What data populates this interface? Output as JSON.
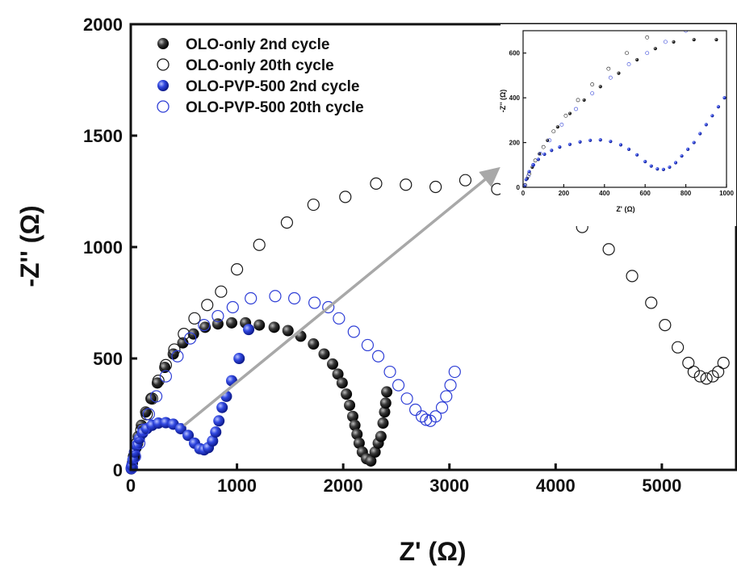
{
  "chart_data": {
    "type": "scatter",
    "title": "",
    "xlabel": "Z' (Ω)",
    "ylabel": "-Z'' (Ω)",
    "xlim": [
      0,
      5700
    ],
    "ylim": [
      0,
      2000
    ],
    "x_ticks": [
      "0",
      "1000",
      "2000",
      "3000",
      "4000",
      "5000"
    ],
    "y_ticks": [
      "0",
      "500",
      "1000",
      "1500",
      "2000"
    ],
    "legend_position": "top-left",
    "grid": false,
    "series": [
      {
        "name": "OLO-only 2nd cycle",
        "style": "filled",
        "color": "#1a1a1a",
        "points": [
          [
            5,
            5
          ],
          [
            15,
            30
          ],
          [
            30,
            60
          ],
          [
            50,
            100
          ],
          [
            70,
            150
          ],
          [
            100,
            200
          ],
          [
            140,
            260
          ],
          [
            190,
            320
          ],
          [
            250,
            390
          ],
          [
            320,
            460
          ],
          [
            400,
            520
          ],
          [
            490,
            570
          ],
          [
            590,
            610
          ],
          [
            700,
            640
          ],
          [
            820,
            655
          ],
          [
            950,
            660
          ],
          [
            1080,
            660
          ],
          [
            1210,
            650
          ],
          [
            1350,
            640
          ],
          [
            1480,
            625
          ],
          [
            1600,
            600
          ],
          [
            1720,
            565
          ],
          [
            1820,
            520
          ],
          [
            1900,
            475
          ],
          [
            1950,
            430
          ],
          [
            1990,
            390
          ],
          [
            2030,
            340
          ],
          [
            2060,
            290
          ],
          [
            2090,
            240
          ],
          [
            2110,
            200
          ],
          [
            2130,
            160
          ],
          [
            2150,
            120
          ],
          [
            2180,
            80
          ],
          [
            2220,
            50
          ],
          [
            2260,
            40
          ],
          [
            2300,
            80
          ],
          [
            2330,
            120
          ],
          [
            2355,
            150
          ],
          [
            2375,
            210
          ],
          [
            2390,
            260
          ],
          [
            2400,
            300
          ],
          [
            2410,
            350
          ]
        ]
      },
      {
        "name": "OLO-only 20th cycle",
        "style": "open",
        "color": "#1a1a1a",
        "points": [
          [
            10,
            10
          ],
          [
            30,
            60
          ],
          [
            60,
            120
          ],
          [
            100,
            180
          ],
          [
            150,
            250
          ],
          [
            200,
            320
          ],
          [
            260,
            400
          ],
          [
            330,
            470
          ],
          [
            410,
            540
          ],
          [
            500,
            610
          ],
          [
            600,
            680
          ],
          [
            720,
            740
          ],
          [
            850,
            800
          ],
          [
            1000,
            900
          ],
          [
            1210,
            1010
          ],
          [
            1470,
            1110
          ],
          [
            1720,
            1190
          ],
          [
            2020,
            1225
          ],
          [
            2310,
            1285
          ],
          [
            2590,
            1280
          ],
          [
            2870,
            1270
          ],
          [
            3150,
            1300
          ],
          [
            3450,
            1260
          ],
          [
            3720,
            1230
          ],
          [
            4000,
            1180
          ],
          [
            4250,
            1090
          ],
          [
            4500,
            990
          ],
          [
            4720,
            870
          ],
          [
            4900,
            750
          ],
          [
            5030,
            650
          ],
          [
            5150,
            550
          ],
          [
            5250,
            480
          ],
          [
            5300,
            440
          ],
          [
            5360,
            420
          ],
          [
            5420,
            410
          ],
          [
            5480,
            420
          ],
          [
            5530,
            440
          ],
          [
            5580,
            480
          ]
        ]
      },
      {
        "name": "OLO-PVP-500 2nd cycle",
        "style": "filled",
        "color": "#2f3fd6",
        "points": [
          [
            5,
            5
          ],
          [
            10,
            20
          ],
          [
            20,
            45
          ],
          [
            35,
            80
          ],
          [
            55,
            110
          ],
          [
            80,
            140
          ],
          [
            110,
            165
          ],
          [
            150,
            185
          ],
          [
            200,
            200
          ],
          [
            260,
            210
          ],
          [
            330,
            212
          ],
          [
            400,
            205
          ],
          [
            470,
            185
          ],
          [
            540,
            155
          ],
          [
            600,
            120
          ],
          [
            650,
            95
          ],
          [
            690,
            90
          ],
          [
            730,
            100
          ],
          [
            770,
            130
          ],
          [
            800,
            170
          ],
          [
            830,
            220
          ],
          [
            860,
            280
          ],
          [
            900,
            330
          ],
          [
            950,
            400
          ],
          [
            1020,
            500
          ],
          [
            1110,
            630
          ]
        ]
      },
      {
        "name": "OLO-PVP-500 20th cycle",
        "style": "open",
        "color": "#2f3fd6",
        "points": [
          [
            10,
            10
          ],
          [
            40,
            60
          ],
          [
            80,
            120
          ],
          [
            120,
            180
          ],
          [
            170,
            250
          ],
          [
            240,
            330
          ],
          [
            330,
            420
          ],
          [
            440,
            510
          ],
          [
            560,
            590
          ],
          [
            690,
            650
          ],
          [
            820,
            690
          ],
          [
            960,
            730
          ],
          [
            1130,
            770
          ],
          [
            1360,
            780
          ],
          [
            1540,
            770
          ],
          [
            1730,
            750
          ],
          [
            1860,
            730
          ],
          [
            1960,
            680
          ],
          [
            2100,
            620
          ],
          [
            2230,
            560
          ],
          [
            2330,
            510
          ],
          [
            2440,
            440
          ],
          [
            2520,
            380
          ],
          [
            2600,
            320
          ],
          [
            2680,
            270
          ],
          [
            2740,
            240
          ],
          [
            2780,
            225
          ],
          [
            2820,
            220
          ],
          [
            2870,
            240
          ],
          [
            2930,
            280
          ],
          [
            2970,
            330
          ],
          [
            3010,
            380
          ],
          [
            3050,
            440
          ]
        ]
      }
    ],
    "inset": {
      "xlabel": "Z' (Ω)",
      "ylabel": "-Z'' (Ω)",
      "xlim": [
        0,
        1000
      ],
      "ylim": [
        0,
        700
      ],
      "x_ticks": [
        "0",
        "200",
        "400",
        "600",
        "800",
        "1000"
      ],
      "y_ticks": [
        "0",
        "200",
        "400",
        "600"
      ],
      "series": [
        {
          "name": "OLO-only 2nd cycle",
          "style": "filled",
          "color": "#1a1a1a",
          "points": [
            [
              5,
              5
            ],
            [
              20,
              40
            ],
            [
              45,
              90
            ],
            [
              80,
              150
            ],
            [
              120,
              210
            ],
            [
              170,
              270
            ],
            [
              230,
              330
            ],
            [
              300,
              390
            ],
            [
              380,
              450
            ],
            [
              470,
              510
            ],
            [
              560,
              570
            ],
            [
              650,
              620
            ],
            [
              740,
              650
            ],
            [
              840,
              660
            ],
            [
              950,
              660
            ]
          ]
        },
        {
          "name": "OLO-only 20th cycle",
          "style": "open",
          "color": "#1a1a1a",
          "points": [
            [
              10,
              10
            ],
            [
              30,
              60
            ],
            [
              60,
              120
            ],
            [
              100,
              180
            ],
            [
              150,
              250
            ],
            [
              210,
              320
            ],
            [
              270,
              390
            ],
            [
              340,
              460
            ],
            [
              420,
              530
            ],
            [
              510,
              600
            ],
            [
              610,
              670
            ],
            [
              720,
              730
            ],
            [
              850,
              800
            ],
            [
              950,
              850
            ]
          ]
        },
        {
          "name": "OLO-PVP-500 2nd cycle",
          "style": "filled",
          "color": "#2f3fd6",
          "points": [
            [
              5,
              5
            ],
            [
              15,
              35
            ],
            [
              30,
              70
            ],
            [
              50,
              100
            ],
            [
              75,
              125
            ],
            [
              105,
              148
            ],
            [
              140,
              165
            ],
            [
              180,
              180
            ],
            [
              230,
              192
            ],
            [
              280,
              203
            ],
            [
              330,
              210
            ],
            [
              380,
              212
            ],
            [
              430,
              205
            ],
            [
              480,
              190
            ],
            [
              520,
              170
            ],
            [
              560,
              145
            ],
            [
              600,
              115
            ],
            [
              630,
              95
            ],
            [
              660,
              82
            ],
            [
              690,
              80
            ],
            [
              720,
              90
            ],
            [
              750,
              110
            ],
            [
              780,
              140
            ],
            [
              810,
              170
            ],
            [
              840,
              200
            ],
            [
              870,
              240
            ],
            [
              900,
              280
            ],
            [
              930,
              320
            ],
            [
              960,
              360
            ],
            [
              990,
              400
            ]
          ]
        },
        {
          "name": "OLO-PVP-500 20th cycle",
          "style": "open",
          "color": "#2f3fd6",
          "points": [
            [
              8,
              8
            ],
            [
              25,
              50
            ],
            [
              50,
              100
            ],
            [
              85,
              150
            ],
            [
              130,
              210
            ],
            [
              190,
              280
            ],
            [
              260,
              350
            ],
            [
              340,
              420
            ],
            [
              430,
              490
            ],
            [
              520,
              550
            ],
            [
              610,
              600
            ],
            [
              700,
              650
            ],
            [
              800,
              700
            ]
          ]
        }
      ]
    }
  }
}
